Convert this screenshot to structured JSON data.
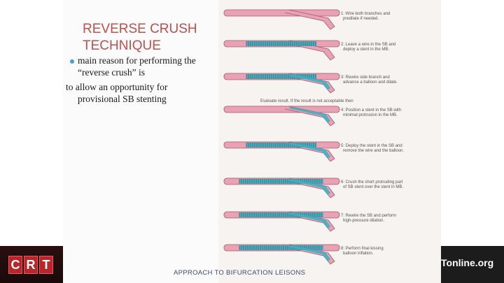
{
  "slide": {
    "title_line1": "REVERSE CRUSH",
    "title_line2": "TECHNIQUE",
    "bullet_line1": "main reason for performing the",
    "bullet_line2": "“reverse crush” is",
    "body_line3": "to allow an opportunity for",
    "body_line4": "provisional SB stenting",
    "footer": "APPROACH TO  BIFURCATION LEISONS"
  },
  "branding": {
    "logo_letters": [
      "C",
      "R",
      "T"
    ],
    "site_suffix": "Tonline.org"
  },
  "figure": {
    "steps": [
      {
        "label_line1": "1: Wire both branches and",
        "label_line2": "predilate if needed."
      },
      {
        "label_line1": "2: Leave a wire in the SB and",
        "label_line2": "deploy a stent in the MB."
      },
      {
        "label_line1": "3: Rewire side branch and",
        "label_line2": "advance a balloon and dilate."
      },
      {
        "label_line1": "4: Position a stent in the SB with",
        "label_line2": "minimal protrusion in the MB."
      },
      {
        "label_line1": "5: Deploy the stent in the SB and",
        "label_line2": "remove the wire and the balloon."
      },
      {
        "label_line1": "6: Crush the short protruding part",
        "label_line2": "of SB stent over the stent in MB."
      },
      {
        "label_line1": "7: Rewire the SB and perform",
        "label_line2": "high-pressure dilation."
      },
      {
        "label_line1": "8: Perform final kissing",
        "label_line2": "balloon inflation."
      }
    ],
    "evaluate_note": "Evaluate result. If the result is not acceptable then",
    "colors": {
      "vessel": "#e8a2b4",
      "vessel_edge": "#a7586c",
      "stent": "#3fb0c4",
      "stent_stripe": "#2a6e70"
    }
  }
}
